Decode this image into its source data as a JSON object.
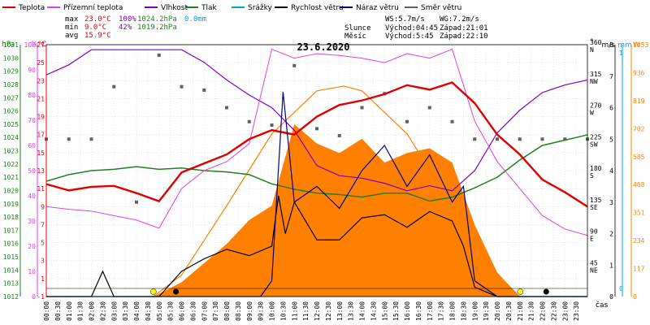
{
  "legend": [
    {
      "label": "Teplota",
      "color": "#e00000"
    },
    {
      "label": "Přízemní teplota",
      "color": "#e040e0"
    },
    {
      "label": "Vlhkost",
      "color": "#8000c0"
    },
    {
      "label": "Tlak",
      "color": "#208020"
    },
    {
      "label": "Srážky",
      "color": "#00a0e0"
    },
    {
      "label": "Rychlost větru",
      "color": "#000000"
    },
    {
      "label": "Náraz větru",
      "color": "#000080"
    },
    {
      "label": "Směr větru",
      "color": "#606060"
    }
  ],
  "stats": {
    "max": {
      "label": "max",
      "temp": "23.0°C",
      "hum": "100%",
      "press": "1024.2hPa",
      "rain": "0.0mm"
    },
    "min": {
      "label": "min",
      "temp": "9.0°C",
      "hum": "42%",
      "press": "1019.2hPa"
    },
    "avg": {
      "label": "avg",
      "temp": "15.9°C"
    }
  },
  "wind_info": {
    "ws": "WS:5.7m/s",
    "wg": "WG:7.2m/s"
  },
  "sun": {
    "label": "Slunce",
    "rise": "Východ:04:45",
    "set": "Západ:21:01"
  },
  "moon": {
    "label": "Měsíc",
    "rise": "Východ:5:45",
    "set": "Západ:22:10"
  },
  "title": "23.6.2020",
  "xlabel": "čas",
  "unit_labels": {
    "press": "hPa",
    "hum": "%",
    "temp": "°C",
    "dir": "°",
    "wind": "m/s",
    "rain": "mm",
    "solar": "W"
  },
  "colors": {
    "press": "#208020",
    "hum": "#e040e0",
    "temp": "#e00000",
    "wind": "#000000",
    "rain": "#00a0e0",
    "solar": "#ff8000"
  },
  "chart_data": {
    "type": "line",
    "x_ticks": [
      "00:00",
      "00:30",
      "01:00",
      "01:30",
      "02:00",
      "02:30",
      "03:00",
      "03:30",
      "04:00",
      "04:30",
      "05:00",
      "05:30",
      "06:00",
      "06:30",
      "07:00",
      "07:30",
      "08:00",
      "08:30",
      "09:00",
      "09:30",
      "10:00",
      "10:30",
      "11:00",
      "11:30",
      "12:00",
      "12:30",
      "13:00",
      "13:30",
      "14:00",
      "14:30",
      "15:00",
      "15:30",
      "16:00",
      "16:30",
      "17:00",
      "17:30",
      "18:00",
      "18:30",
      "19:00",
      "19:30",
      "20:00",
      "20:30",
      "21:00",
      "21:30",
      "22:00",
      "22:30",
      "23:00",
      "23:30"
    ],
    "axes": {
      "press": {
        "ticks": [
          "1031",
          "1030",
          "1029",
          "1028",
          "1027",
          "1026",
          "1025",
          "1024",
          "1023",
          "1022",
          "1021",
          "1020",
          "1019",
          "1018",
          "1017",
          "1016",
          "1015",
          "1014",
          "1013",
          "1012"
        ],
        "range": [
          1012,
          1031
        ]
      },
      "hum": {
        "ticks": [
          "100",
          "90",
          "80",
          "70",
          "60",
          "50",
          "40",
          "30",
          "20",
          "10",
          "0"
        ],
        "range": [
          0,
          100
        ]
      },
      "temp": {
        "ticks": [
          "27",
          "25",
          "23",
          "21",
          "19",
          "17",
          "15",
          "13",
          "11",
          "9",
          "7",
          "5",
          "3",
          "1",
          "-1"
        ],
        "range": [
          -1,
          27
        ]
      },
      "dir": {
        "ticks": [
          "360",
          "315",
          "270",
          "225",
          "180",
          "135",
          "90",
          "45"
        ],
        "dir_labels": [
          "N",
          "NW",
          "W",
          "SW",
          "S",
          "SE",
          "E",
          "NE"
        ],
        "range": [
          0,
          360
        ]
      },
      "wind": {
        "ticks": [
          "8",
          "7",
          "6",
          "5",
          "4",
          "3",
          "2",
          "1",
          "0"
        ],
        "range": [
          0,
          8
        ]
      },
      "rain": {
        "ticks": [
          "1",
          "0"
        ],
        "range": [
          0,
          1
        ]
      },
      "solar": {
        "ticks": [
          "1053",
          "936",
          "819",
          "702",
          "585",
          "468",
          "351",
          "234",
          "117",
          "0"
        ],
        "range": [
          0,
          1053
        ]
      }
    },
    "series": [
      {
        "name": "Teplota",
        "axis": "temp",
        "color": "#e00000",
        "x": [
          0,
          1,
          2,
          3,
          4,
          5,
          6,
          7,
          8,
          9,
          10,
          11,
          12,
          13,
          14,
          15,
          16,
          17,
          18,
          19,
          20,
          21,
          22,
          23,
          24
        ],
        "y": [
          11.5,
          10.8,
          11.2,
          11.3,
          10.5,
          9.6,
          12.8,
          13.8,
          14.8,
          16.5,
          17.5,
          17.0,
          19.0,
          20.3,
          20.8,
          21.5,
          22.5,
          22.0,
          22.8,
          20.5,
          17.0,
          14.8,
          12.0,
          10.6,
          9.0
        ]
      },
      {
        "name": "Přízemní teplota",
        "axis": "temp",
        "color": "#e040e0",
        "x": [
          0,
          1,
          2,
          3,
          4,
          5,
          6,
          7,
          8,
          9,
          10,
          11,
          12,
          13,
          14,
          15,
          16,
          17,
          18,
          19,
          20,
          21,
          22,
          23,
          24
        ],
        "y": [
          9.0,
          8.7,
          8.5,
          8.0,
          7.5,
          6.6,
          11.0,
          13.0,
          14.0,
          16.0,
          26.5,
          25.5,
          26.0,
          25.8,
          25.5,
          25.0,
          26.0,
          25.5,
          26.5,
          18.5,
          14.0,
          11.0,
          8.0,
          6.5,
          5.8
        ]
      },
      {
        "name": "Vlhkost",
        "axis": "hum",
        "color": "#8000c0",
        "x": [
          0,
          1,
          2,
          3,
          4,
          5,
          6,
          7,
          8,
          9,
          10,
          11,
          12,
          13,
          14,
          15,
          16,
          17,
          18,
          19,
          20,
          21,
          22,
          23,
          24
        ],
        "y": [
          88,
          92,
          98,
          98,
          98,
          98,
          98,
          93,
          86,
          80,
          75,
          66,
          52,
          48,
          47,
          45,
          42,
          44,
          42,
          50,
          65,
          74,
          81,
          84,
          86
        ]
      },
      {
        "name": "Tlak",
        "axis": "press",
        "color": "#208020",
        "x": [
          0,
          1,
          2,
          3,
          4,
          5,
          6,
          7,
          8,
          9,
          10,
          11,
          12,
          13,
          14,
          15,
          16,
          17,
          18,
          19,
          20,
          21,
          22,
          23,
          24
        ],
        "y": [
          1020.7,
          1021.2,
          1021.5,
          1021.6,
          1021.8,
          1021.6,
          1021.7,
          1021.5,
          1021.4,
          1021.2,
          1020.5,
          1020.1,
          1019.8,
          1019.7,
          1019.5,
          1019.8,
          1019.8,
          1019.2,
          1019.5,
          1020.2,
          1021.0,
          1022.3,
          1023.4,
          1023.8,
          1024.2
        ]
      },
      {
        "name": "Rychlost větru",
        "axis": "wind",
        "color": "#000000",
        "x": [
          0,
          2,
          2.5,
          3,
          4,
          5,
          6,
          7,
          8,
          9,
          10,
          10.3,
          10.6,
          11,
          12,
          13,
          14,
          15,
          16,
          17,
          18,
          18.5,
          19,
          20,
          24
        ],
        "y": [
          0,
          0,
          0.8,
          0,
          0,
          0,
          0.8,
          1.2,
          1.5,
          1.3,
          1.6,
          3.2,
          2.0,
          3.0,
          1.8,
          1.8,
          2.5,
          2.6,
          2.2,
          2.7,
          2.4,
          1.6,
          0.3,
          0,
          0
        ]
      },
      {
        "name": "Náraz větru",
        "axis": "wind",
        "color": "#000080",
        "x": [
          0,
          9.5,
          10,
          10.5,
          11,
          12,
          13,
          14,
          15,
          16,
          17,
          18,
          18.5,
          19,
          20,
          24
        ],
        "y": [
          0,
          0,
          0.5,
          6.5,
          3.0,
          3.5,
          2.8,
          4.0,
          4.8,
          3.5,
          4.5,
          3.0,
          3.5,
          0.5,
          0,
          0
        ]
      },
      {
        "name": "Směr větru",
        "axis": "dir",
        "color": "#606060",
        "x": [
          0,
          1,
          2,
          3,
          4,
          5,
          6,
          7,
          8,
          9,
          10,
          11,
          12,
          13,
          14,
          15,
          16,
          17,
          18,
          19,
          20,
          21,
          22,
          23,
          24
        ],
        "y": [
          225,
          225,
          225,
          300,
          135,
          345,
          300,
          295,
          270,
          250,
          245,
          330,
          240,
          230,
          270,
          290,
          250,
          270,
          250,
          225,
          225,
          225,
          225,
          225,
          225
        ]
      },
      {
        "name": "Srážky",
        "axis": "rain",
        "color": "#00a0e0",
        "x": [
          0,
          24
        ],
        "y": [
          0,
          0
        ]
      },
      {
        "name": "Solar",
        "axis": "solar",
        "color": "#ff8000",
        "x": [
          4.75,
          6,
          7,
          8,
          9,
          10,
          11,
          12,
          13,
          14,
          15,
          16,
          17,
          18,
          19,
          20,
          21
        ],
        "y": [
          0,
          60,
          140,
          220,
          320,
          380,
          720,
          640,
          600,
          660,
          560,
          600,
          620,
          560,
          300,
          100,
          0
        ]
      },
      {
        "name": "Theoretical radiation",
        "axis": "solar",
        "color": "#ff8000",
        "x": [
          4.75,
          6,
          8,
          10,
          12,
          13.2,
          14,
          16,
          18,
          20,
          21
        ],
        "y": [
          0,
          90,
          380,
          680,
          860,
          880,
          860,
          680,
          380,
          90,
          0
        ]
      }
    ]
  }
}
